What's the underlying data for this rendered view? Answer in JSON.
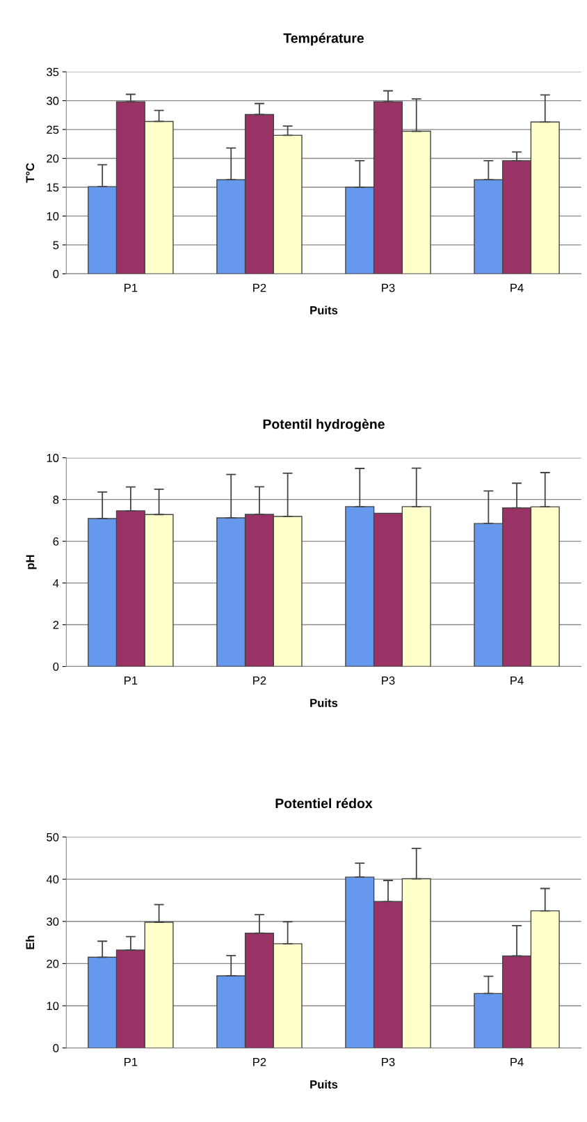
{
  "chart_data": [
    {
      "type": "bar",
      "title": "Température",
      "xlabel": "Puits",
      "ylabel": "T°C",
      "categories": [
        "P1",
        "P2",
        "P3",
        "P4"
      ],
      "ylim": [
        0,
        35
      ],
      "yticks": [
        0,
        5,
        10,
        15,
        20,
        25,
        30,
        35
      ],
      "grid": "y",
      "series": [
        {
          "color": "#6699ee",
          "values": [
            15.1,
            16.3,
            15.0,
            16.3
          ],
          "errors": [
            [
              15.1,
              18.9
            ],
            [
              16.3,
              21.8
            ],
            [
              15.0,
              19.6
            ],
            [
              16.3,
              19.6
            ]
          ]
        },
        {
          "color": "#993366",
          "values": [
            29.8,
            27.6,
            29.8,
            19.6
          ],
          "errors": [
            [
              29.8,
              31.1
            ],
            [
              27.6,
              29.5
            ],
            [
              29.8,
              31.7
            ],
            [
              19.6,
              21.1
            ]
          ]
        },
        {
          "color": "#ffffcc",
          "values": [
            26.4,
            24.0,
            24.7,
            26.3
          ],
          "errors": [
            [
              26.4,
              28.3
            ],
            [
              24.0,
              25.6
            ],
            [
              24.7,
              30.3
            ],
            [
              26.3,
              31.0
            ]
          ]
        }
      ]
    },
    {
      "type": "bar",
      "title": "Potentil hydrogène",
      "xlabel": "Puits",
      "ylabel": "pH",
      "categories": [
        "P1",
        "P2",
        "P3",
        "P4"
      ],
      "ylim": [
        0,
        10
      ],
      "yticks": [
        0,
        2,
        4,
        6,
        8,
        10
      ],
      "grid": "y",
      "series": [
        {
          "color": "#6699ee",
          "values": [
            7.09,
            7.12,
            7.66,
            6.85
          ],
          "errors": [
            [
              7.09,
              8.36
            ],
            [
              7.12,
              9.2
            ],
            [
              7.66,
              9.49
            ],
            [
              6.85,
              8.41
            ]
          ]
        },
        {
          "color": "#993366",
          "values": [
            7.46,
            7.29,
            7.34,
            7.6
          ],
          "errors": [
            [
              7.46,
              8.6
            ],
            [
              7.29,
              8.61
            ],
            null,
            [
              7.6,
              8.78
            ]
          ]
        },
        {
          "color": "#ffffcc",
          "values": [
            7.28,
            7.19,
            7.66,
            7.65
          ],
          "errors": [
            [
              7.28,
              8.49
            ],
            [
              7.19,
              9.26
            ],
            [
              7.66,
              9.5
            ],
            [
              7.65,
              9.29
            ]
          ]
        }
      ]
    },
    {
      "type": "bar",
      "title": "Potentiel rédox",
      "xlabel": "Puits",
      "ylabel": "Eh",
      "categories": [
        "P1",
        "P2",
        "P3",
        "P4"
      ],
      "ylim": [
        0,
        50
      ],
      "yticks": [
        0,
        10,
        20,
        30,
        40,
        50
      ],
      "grid": "y",
      "series": [
        {
          "color": "#6699ee",
          "values": [
            21.5,
            17.1,
            40.5,
            12.9
          ],
          "errors": [
            [
              21.5,
              25.3
            ],
            [
              17.1,
              21.9
            ],
            [
              40.5,
              43.8
            ],
            [
              12.9,
              17.0
            ]
          ]
        },
        {
          "color": "#993366",
          "values": [
            23.2,
            27.2,
            34.7,
            21.8
          ],
          "errors": [
            [
              23.2,
              26.4
            ],
            [
              27.2,
              31.6
            ],
            [
              34.7,
              39.7
            ],
            [
              21.8,
              29.0
            ]
          ]
        },
        {
          "color": "#ffffcc",
          "values": [
            29.8,
            24.7,
            40.1,
            32.5
          ],
          "errors": [
            [
              29.8,
              34.0
            ],
            [
              24.7,
              29.9
            ],
            [
              40.1,
              47.3
            ],
            [
              32.5,
              37.8
            ]
          ]
        }
      ]
    }
  ]
}
